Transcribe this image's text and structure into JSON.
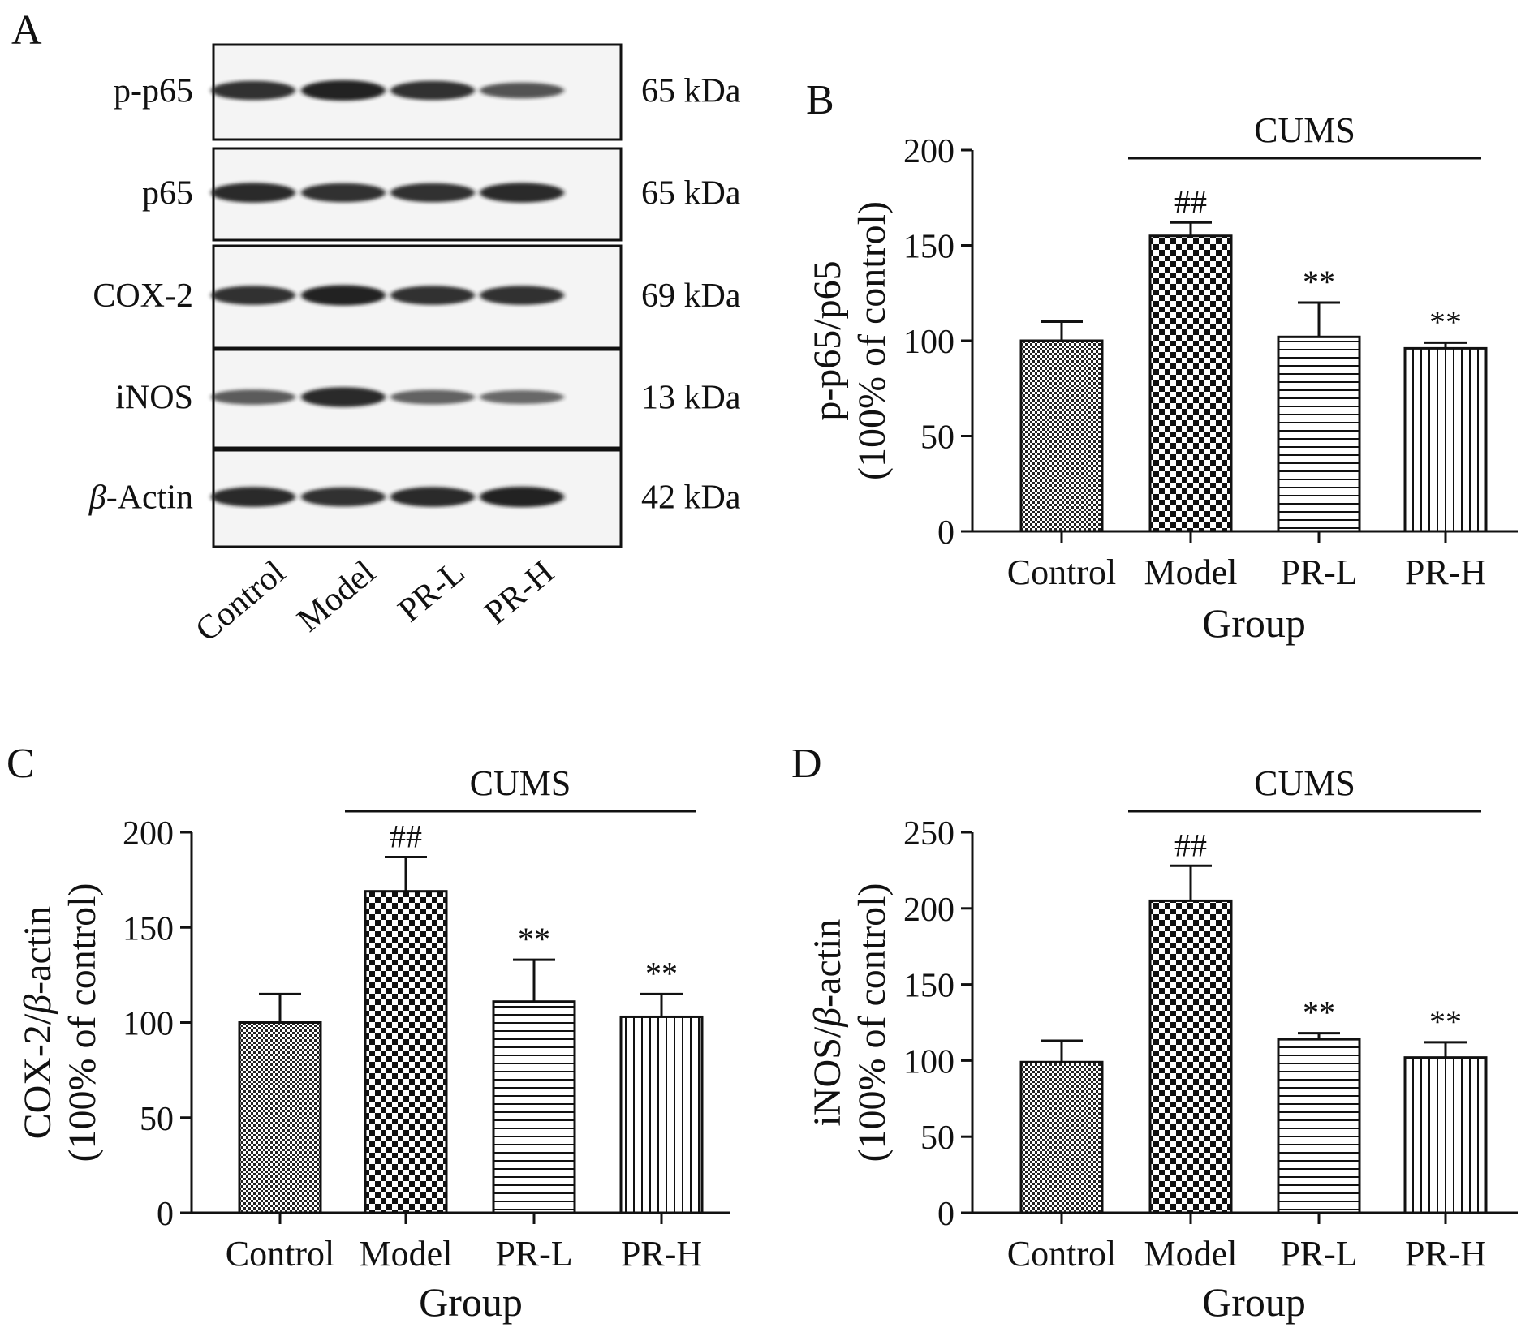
{
  "blot": {
    "panel_label": "A",
    "bands": [
      {
        "name": "p-p65",
        "kda": "65 kDa",
        "intensity": [
          0.85,
          0.95,
          0.85,
          0.6
        ]
      },
      {
        "name": "p65",
        "kda": "65 kDa",
        "intensity": [
          0.9,
          0.85,
          0.85,
          0.9
        ]
      },
      {
        "name": "COX-2",
        "kda": "69 kDa",
        "intensity": [
          0.85,
          0.95,
          0.85,
          0.85
        ]
      },
      {
        "name": "iNOS",
        "kda": "13 kDa",
        "intensity": [
          0.55,
          0.9,
          0.5,
          0.45
        ]
      },
      {
        "name_italic": "β",
        "name": "-Actin",
        "kda": "42 kDa",
        "intensity": [
          0.9,
          0.85,
          0.9,
          0.95
        ]
      }
    ],
    "lanes": [
      "Control",
      "Model",
      "PR-L",
      "PR-H"
    ]
  },
  "colors": {
    "ink": "#111111",
    "band": "#1a1a1a"
  },
  "chart_data": [
    {
      "type": "bar",
      "panel_label": "B",
      "categories": [
        "Control",
        "Model",
        "PR-L",
        "PR-H"
      ],
      "values": [
        100,
        155,
        102,
        96
      ],
      "errors": [
        10,
        7,
        18,
        3
      ],
      "annotations": [
        "",
        "##",
        "**",
        "**"
      ],
      "patterns": [
        "fine-check",
        "coarse-check",
        "horizontal",
        "vertical"
      ],
      "bracket_label": "CUMS",
      "xlabel": "Group",
      "ylabel_line1": "p-p65/p65",
      "ylabel_line2": "(100% of control)",
      "ylim": [
        0,
        200
      ],
      "yticks": [
        0,
        50,
        100,
        150,
        200
      ]
    },
    {
      "type": "bar",
      "panel_label": "C",
      "categories": [
        "Control",
        "Model",
        "PR-L",
        "PR-H"
      ],
      "values": [
        100,
        169,
        111,
        103
      ],
      "errors": [
        15,
        18,
        22,
        12
      ],
      "annotations": [
        "",
        "##",
        "**",
        "**"
      ],
      "patterns": [
        "fine-check",
        "coarse-check",
        "horizontal",
        "vertical"
      ],
      "bracket_label": "CUMS",
      "xlabel": "Group",
      "ylabel_line1_pre": "COX-2/",
      "ylabel_line1_italic": "β",
      "ylabel_line1_post": "-actin",
      "ylabel_line2": "(100% of control)",
      "ylim": [
        0,
        200
      ],
      "yticks": [
        0,
        50,
        100,
        150,
        200
      ]
    },
    {
      "type": "bar",
      "panel_label": "D",
      "categories": [
        "Control",
        "Model",
        "PR-L",
        "PR-H"
      ],
      "values": [
        99,
        205,
        114,
        102
      ],
      "errors": [
        14,
        23,
        4,
        10
      ],
      "annotations": [
        "",
        "##",
        "**",
        "**"
      ],
      "patterns": [
        "fine-check",
        "coarse-check",
        "horizontal",
        "vertical"
      ],
      "bracket_label": "CUMS",
      "xlabel": "Group",
      "ylabel_line1_pre": "iNOS/",
      "ylabel_line1_italic": "β",
      "ylabel_line1_post": "-actin",
      "ylabel_line2": "(100% of control)",
      "ylim": [
        0,
        250
      ],
      "yticks": [
        0,
        50,
        100,
        150,
        200,
        250
      ]
    }
  ]
}
